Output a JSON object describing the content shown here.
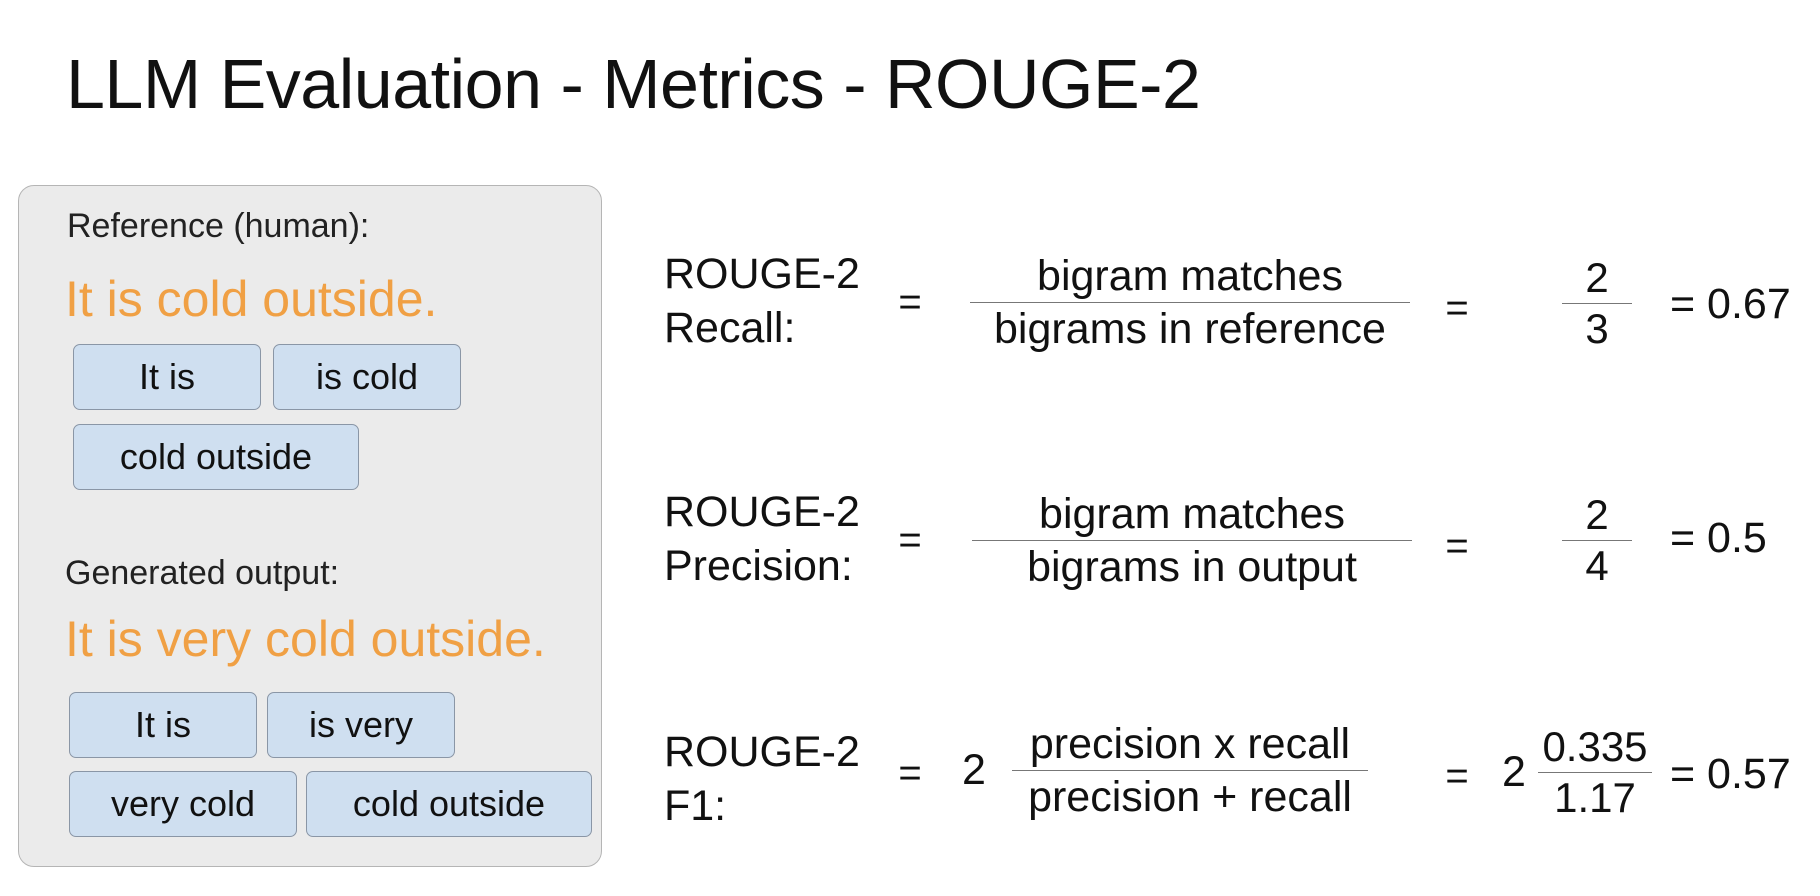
{
  "title": "LLM Evaluation - Metrics - ROUGE-2",
  "panel": {
    "reference_label": "Reference (human):",
    "reference_sentence": "It is cold outside.",
    "reference_bigrams": [
      "It is",
      "is cold",
      "cold outside"
    ],
    "generated_label": "Generated output:",
    "generated_sentence": "It is very cold outside.",
    "generated_bigrams": [
      "It is",
      "is very",
      "very cold",
      "cold outside"
    ],
    "sentence_color": "#f0a044",
    "chip_color": "#cfdff0"
  },
  "recall": {
    "label_line1": "ROUGE-2",
    "label_line2": "Recall:",
    "eq1": "=",
    "numerator": "bigram matches",
    "denominator": "bigrams in reference",
    "eq2": "=",
    "num_value": "2",
    "den_value": "3",
    "result": "= 0.67"
  },
  "precision": {
    "label_line1": "ROUGE-2",
    "label_line2": "Precision:",
    "eq1": "=",
    "numerator": "bigram matches",
    "denominator": "bigrams in output",
    "eq2": "=",
    "num_value": "2",
    "den_value": "4",
    "result": "= 0.5"
  },
  "f1": {
    "label_line1": "ROUGE-2",
    "label_line2": "F1:",
    "eq1": "=",
    "coefficient": "2",
    "numerator": "precision x recall",
    "denominator": "precision + recall",
    "eq2": "=",
    "coefficient2": "2",
    "num_value": "0.335",
    "den_value": "1.17",
    "result": "= 0.57"
  }
}
